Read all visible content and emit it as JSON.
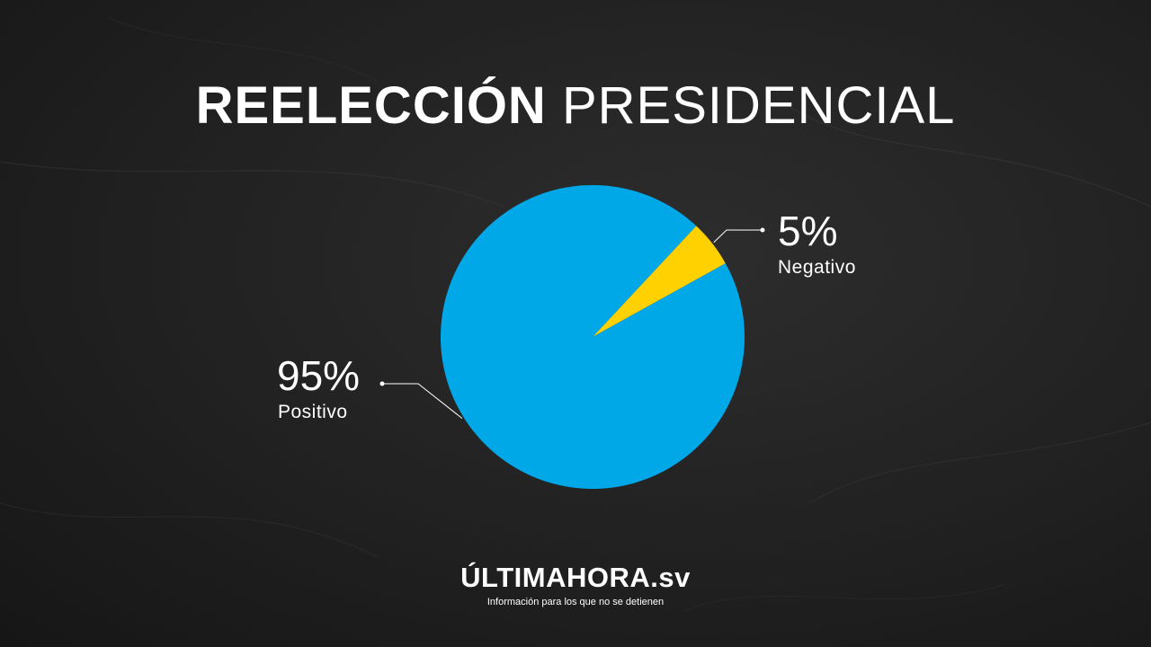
{
  "title": {
    "bold": "REELECCIÓN",
    "light": "PRESIDENCIAL"
  },
  "chart_data": {
    "type": "pie",
    "title": "REELECCIÓN PRESIDENCIAL",
    "slices": [
      {
        "label": "Positivo",
        "value": 95,
        "display": "95%",
        "color": "#00a8e8"
      },
      {
        "label": "Negativo",
        "value": 5,
        "display": "5%",
        "color": "#ffd100"
      }
    ]
  },
  "brand": {
    "name": "ÚLTIMAHORA.sv",
    "tagline": "Información para los que no se detienen"
  }
}
